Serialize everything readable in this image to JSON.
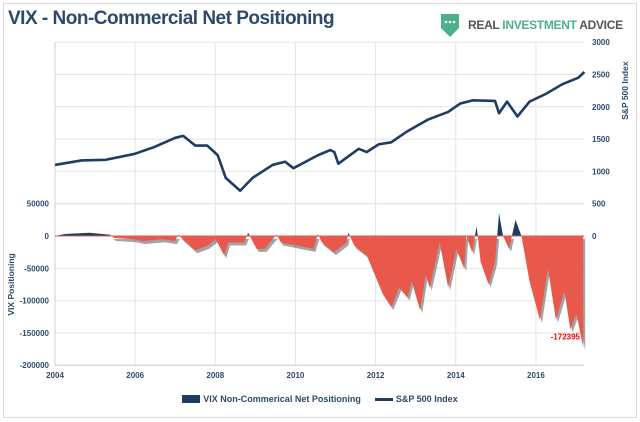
{
  "title": "VIX - Non-Commercial Net Positioning",
  "logo": {
    "part1": "REAL ",
    "part2": "INVESTMENT",
    "part3": " ADVICE",
    "icon": "chat-shield-icon",
    "color": "#4cb08a"
  },
  "chart_data": {
    "type": "area+line",
    "title": "VIX - Non-Commercial Net Positioning",
    "x_ticks": [
      "2004",
      "2006",
      "2008",
      "2010",
      "2012",
      "2014",
      "2016"
    ],
    "xlim": [
      2004,
      2017.2
    ],
    "left_axis": {
      "label": "VIX Positioning",
      "ylim": [
        -200000,
        50000
      ],
      "ticks": [
        "50000",
        "0",
        "-50000",
        "-100000",
        "-150000",
        "-200000"
      ]
    },
    "right_axis": {
      "label": "S&P 500 Index",
      "ylim": [
        0,
        3000
      ],
      "ticks": [
        "3000",
        "2500",
        "2000",
        "1500",
        "1000",
        "500",
        "0"
      ]
    },
    "grid": true,
    "legend_position": "bottom",
    "colors": {
      "positive": "#1f3d63",
      "negative": "#e8594b",
      "line": "#1f3d63",
      "annotation": "#ff0000"
    },
    "annotation": "-172395",
    "series": [
      {
        "name": "VIX Non-Commerical Net Positioning",
        "axis": "left",
        "type": "area",
        "x": [
          2004.0,
          2004.25,
          2004.86,
          2005.37,
          2005.47,
          2005.98,
          2006.19,
          2006.69,
          2006.99,
          2007.08,
          2007.19,
          2007.5,
          2007.8,
          2008.01,
          2008.22,
          2008.32,
          2008.72,
          2008.82,
          2009.03,
          2009.23,
          2009.43,
          2009.53,
          2009.64,
          2010.05,
          2010.45,
          2010.56,
          2010.66,
          2010.96,
          2011.27,
          2011.32,
          2011.47,
          2011.78,
          2011.98,
          2012.18,
          2012.39,
          2012.59,
          2012.8,
          2012.9,
          2013.11,
          2013.25,
          2013.35,
          2013.6,
          2013.81,
          2014.01,
          2014.21,
          2014.26,
          2014.41,
          2014.52,
          2014.62,
          2014.82,
          2014.98,
          2015.08,
          2015.18,
          2015.33,
          2015.49,
          2015.64,
          2015.84,
          2016.1,
          2016.3,
          2016.5,
          2016.71,
          2016.86,
          2017.01,
          2017.18
        ],
        "values": [
          0,
          3000,
          5000,
          2000,
          -3000,
          -5000,
          -8000,
          -5000,
          -8000,
          2000,
          -5000,
          -22000,
          -15000,
          -5000,
          -30000,
          -10000,
          -10000,
          5000,
          -20000,
          -20000,
          -5000,
          2000,
          -10000,
          -15000,
          -20000,
          3000,
          -10000,
          -25000,
          -10000,
          5000,
          -15000,
          -30000,
          -60000,
          -90000,
          -110000,
          -80000,
          -95000,
          -70000,
          -115000,
          -60000,
          -80000,
          -10000,
          -80000,
          -20000,
          -50000,
          0,
          -25000,
          15000,
          -40000,
          -75000,
          -40000,
          35000,
          0,
          -20000,
          25000,
          0,
          -70000,
          -130000,
          -50000,
          -130000,
          -85000,
          -145000,
          -120000,
          -172395
        ]
      },
      {
        "name": "S&P 500 Index",
        "axis": "right",
        "type": "line",
        "x": [
          2004.0,
          2004.66,
          2005.27,
          2005.98,
          2006.49,
          2007.0,
          2007.2,
          2007.5,
          2007.8,
          2008.06,
          2008.26,
          2008.62,
          2008.93,
          2009.43,
          2009.74,
          2009.95,
          2010.56,
          2010.87,
          2010.97,
          2011.07,
          2011.58,
          2011.78,
          2012.08,
          2012.39,
          2012.79,
          2013.3,
          2013.81,
          2014.11,
          2014.42,
          2014.98,
          2015.08,
          2015.28,
          2015.54,
          2015.84,
          2016.25,
          2016.66,
          2017.06,
          2017.21
        ],
        "values": [
          1100,
          1170,
          1180,
          1270,
          1380,
          1520,
          1550,
          1400,
          1400,
          1250,
          900,
          700,
          900,
          1100,
          1150,
          1050,
          1250,
          1330,
          1300,
          1120,
          1350,
          1300,
          1420,
          1450,
          1620,
          1800,
          1920,
          2050,
          2100,
          2090,
          1900,
          2080,
          1850,
          2080,
          2200,
          2350,
          2450,
          2540
        ]
      }
    ]
  },
  "legend": {
    "bar_label": "VIX Non-Commerical Net Positioning",
    "line_label": "S&P 500 Index"
  }
}
